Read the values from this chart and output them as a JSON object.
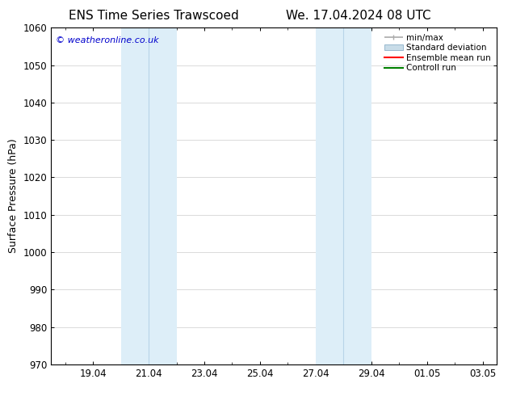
{
  "title_left": "ENS Time Series Trawscoed",
  "title_right": "We. 17.04.2024 08 UTC",
  "ylabel": "Surface Pressure (hPa)",
  "ylim": [
    970,
    1060
  ],
  "yticks": [
    970,
    980,
    990,
    1000,
    1010,
    1020,
    1030,
    1040,
    1050,
    1060
  ],
  "xtick_labels": [
    "19.04",
    "21.04",
    "23.04",
    "25.04",
    "27.04",
    "29.04",
    "01.05",
    "03.05"
  ],
  "xtick_positions": [
    1,
    3,
    5,
    7,
    9,
    11,
    13,
    15
  ],
  "xlim": [
    -0.5,
    15.5
  ],
  "shaded_bands": [
    {
      "x_start": 2,
      "x_mid": 3,
      "x_end": 4,
      "color": "#ddeef8",
      "line_color": "#b8d4e8"
    },
    {
      "x_start": 9,
      "x_mid": 10,
      "x_end": 11,
      "color": "#ddeef8",
      "line_color": "#b8d4e8"
    }
  ],
  "copyright_text": "© weatheronline.co.uk",
  "copyright_color": "#0000cc",
  "legend_items": [
    {
      "label": "min/max",
      "color": "#aaaaaa",
      "lw": 1.2,
      "style": "minmax"
    },
    {
      "label": "Standard deviation",
      "color": "#c8dce8",
      "lw": 8,
      "style": "band"
    },
    {
      "label": "Ensemble mean run",
      "color": "#ff0000",
      "lw": 1.5,
      "style": "line"
    },
    {
      "label": "Controll run",
      "color": "#008000",
      "lw": 1.5,
      "style": "line"
    }
  ],
  "bg_color": "#ffffff",
  "spine_color": "#000000",
  "grid_color": "#cccccc",
  "title_fontsize": 11,
  "tick_fontsize": 8.5,
  "label_fontsize": 9,
  "copyright_fontsize": 8,
  "legend_fontsize": 7.5
}
